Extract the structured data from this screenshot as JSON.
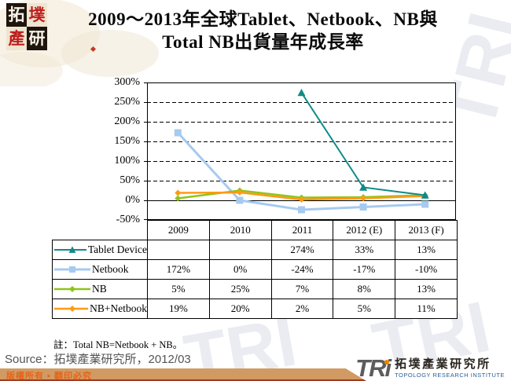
{
  "header": {
    "logo_chars": [
      "拓",
      "墣",
      "產",
      "研"
    ],
    "title_line1": "2009～2013年全球Tablet、Netbook、NB與",
    "title_line2": "Total NB出貨量年成長率"
  },
  "chart_data": {
    "type": "line",
    "categories": [
      "2009",
      "2010",
      "2011",
      "2012 (E)",
      "2013 (F)"
    ],
    "series": [
      {
        "name": "Tablet Device",
        "values": [
          null,
          null,
          274,
          33,
          13
        ],
        "display": [
          "",
          "",
          "274%",
          "33%",
          "13%"
        ],
        "color": "#108a88",
        "marker": "triangle",
        "line_width": 2
      },
      {
        "name": "Netbook",
        "values": [
          172,
          0,
          -24,
          -17,
          -10
        ],
        "display": [
          "172%",
          "0%",
          "-24%",
          "-17%",
          "-10%"
        ],
        "color": "#a6caf0",
        "marker": "square",
        "line_width": 3
      },
      {
        "name": "NB",
        "values": [
          5,
          25,
          7,
          8,
          13
        ],
        "display": [
          "5%",
          "25%",
          "7%",
          "8%",
          "13%"
        ],
        "color": "#8fc41b",
        "marker": "diamond",
        "line_width": 2.5
      },
      {
        "name": "NB+Netbook",
        "values": [
          19,
          20,
          2,
          5,
          11
        ],
        "display": [
          "19%",
          "20%",
          "2%",
          "5%",
          "11%"
        ],
        "color": "#ff9a14",
        "marker": "diamond",
        "line_width": 2.5
      }
    ],
    "ylim": [
      -50,
      300
    ],
    "ytick_step": 50,
    "ytick_labels": [
      "300%",
      "250%",
      "200%",
      "150%",
      "100%",
      "50%",
      "0%",
      "-50%"
    ],
    "grid": "horizontal dashed, solid zero line, legend in attached data table"
  },
  "note": "註：Total NB=Netbook + NB。",
  "source": "Source：拓墣產業研究所，2012/03",
  "footer": {
    "copyright": "版權所有 ▪ 翻印必究",
    "bar_color": "#d19a63"
  },
  "tri_logo": {
    "wordmark": "TRi",
    "name_zh": "拓墣產業研究所",
    "name_en": "TOPOLOGY RESEARCH INSTITUTE"
  },
  "decor": {
    "watermark_text": "TRI"
  }
}
